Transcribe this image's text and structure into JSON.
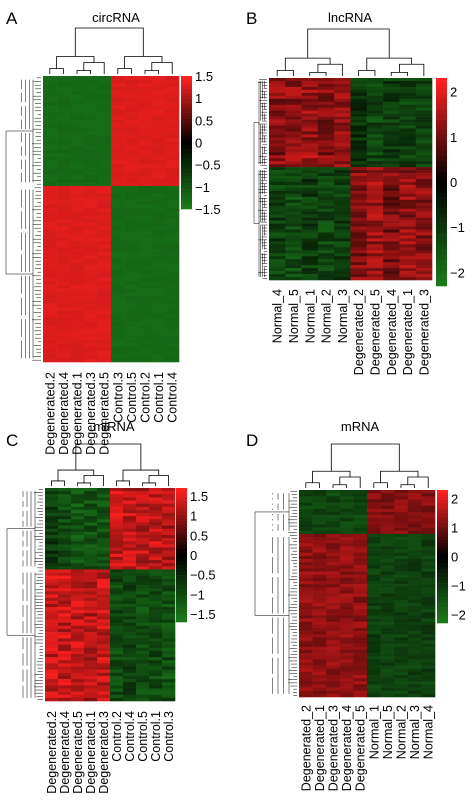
{
  "chart_data": [
    {
      "type": "heatmap",
      "panel_label": "A",
      "title": "circRNA",
      "columns": [
        "Degenerated.2",
        "Degenerated.4",
        "Degenerated.1",
        "Degenerated.3",
        "Degenerated.5",
        "Control.3",
        "Control.5",
        "Control.2",
        "Control.1",
        "Control.4"
      ],
      "row_blocks": [
        {
          "row_count": 30,
          "values": [
            -1.3,
            -1.3,
            -1.3,
            -1.3,
            -1.3,
            1.3,
            1.3,
            1.3,
            1.3,
            1.3
          ]
        },
        {
          "row_count": 48,
          "values": [
            1.3,
            1.3,
            1.3,
            1.3,
            1.3,
            -1.3,
            -1.3,
            -1.3,
            -1.3,
            -1.3
          ]
        }
      ],
      "color_scale": {
        "low": "#1a7a1a",
        "mid": "#000000",
        "high": "#ff2020",
        "min": -1.5,
        "max": 1.5
      },
      "colorbar_ticks": [
        "1.5",
        "1",
        "0.5",
        "0",
        "−0.5",
        "−1",
        "−1.5"
      ]
    },
    {
      "type": "heatmap",
      "panel_label": "B",
      "title": "lncRNA",
      "columns": [
        "Normal_4",
        "Normal_5",
        "Normal_1",
        "Normal_2",
        "Normal_3",
        "Degenerated_2",
        "Degenerated_5",
        "Degenerated_4",
        "Degenerated_1",
        "Degenerated_3"
      ],
      "row_blocks": [
        {
          "row_count": 30,
          "values": [
            1.2,
            1.3,
            1.4,
            1.2,
            1.3,
            -1.0,
            -1.3,
            -1.1,
            -1.2,
            -1.2
          ]
        },
        {
          "row_count": 38,
          "values": [
            -1.2,
            -1.4,
            -1.1,
            -1.3,
            -1.2,
            1.2,
            1.4,
            1.1,
            1.3,
            1.2
          ]
        }
      ],
      "color_scale": {
        "low": "#1a7a1a",
        "mid": "#000000",
        "high": "#ff2020",
        "min": -2.3,
        "max": 2.3
      },
      "colorbar_ticks": [
        "2",
        "1",
        "0",
        "−1",
        "−2"
      ]
    },
    {
      "type": "heatmap",
      "panel_label": "C",
      "title": "miRNA",
      "columns": [
        "Degenerated.2",
        "Degenerated.4",
        "Degenerated.5",
        "Degenerated.1",
        "Degenerated.3",
        "Control.2",
        "Control.4",
        "Control.5",
        "Control.1",
        "Control.3"
      ],
      "row_blocks": [
        {
          "row_count": 26,
          "values": [
            -0.8,
            -1.0,
            -1.2,
            -1.1,
            -1.2,
            1.3,
            1.3,
            1.2,
            1.3,
            1.2
          ]
        },
        {
          "row_count": 42,
          "values": [
            1.3,
            1.3,
            1.3,
            1.2,
            1.3,
            -1.0,
            -0.9,
            -1.1,
            -1.0,
            -1.1
          ]
        }
      ],
      "color_scale": {
        "low": "#1a7a1a",
        "mid": "#000000",
        "high": "#ff2020",
        "min": -1.7,
        "max": 1.7
      },
      "colorbar_ticks": [
        "1.5",
        "1",
        "0.5",
        "0",
        "−0.5",
        "−1",
        "−1.5"
      ]
    },
    {
      "type": "heatmap",
      "panel_label": "D",
      "title": "mRNA",
      "columns": [
        "Degenerated_2",
        "Degenerated_1",
        "Degenerated_3",
        "Degenerated_4",
        "Degenerated_5",
        "Normal_1",
        "Normal_5",
        "Normal_2",
        "Normal_3",
        "Normal_4"
      ],
      "row_blocks": [
        {
          "row_count": 14,
          "values": [
            -1.3,
            -1.3,
            -1.3,
            -1.3,
            -1.3,
            1.2,
            1.2,
            1.2,
            1.2,
            1.2
          ]
        },
        {
          "row_count": 52,
          "values": [
            1.3,
            1.3,
            1.3,
            1.3,
            1.3,
            -1.2,
            -1.2,
            -1.2,
            -1.2,
            -1.2
          ]
        }
      ],
      "color_scale": {
        "low": "#1a7a1a",
        "mid": "#000000",
        "high": "#ff2020",
        "min": -2.3,
        "max": 2.3
      },
      "colorbar_ticks": [
        "2",
        "1",
        "0",
        "−1",
        "−2"
      ]
    }
  ]
}
